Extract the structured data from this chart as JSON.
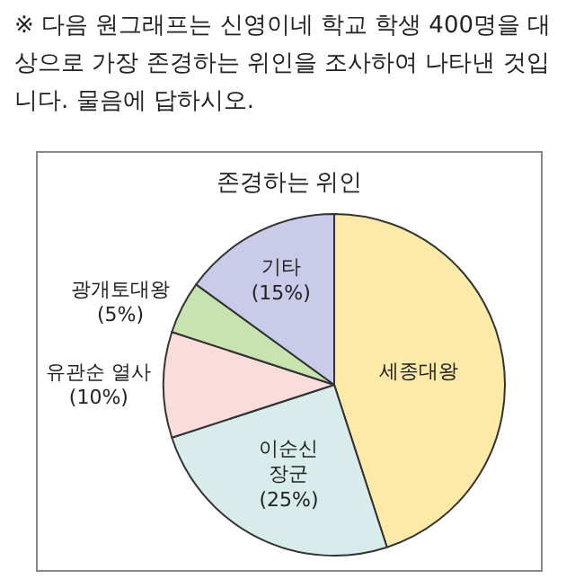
{
  "chart_data": {
    "type": "pie",
    "title": "존경하는 위인",
    "annotations": [
      "※ 다음 원그래프는 신영이네 학교 학생 400명을 대상으로 가장 존경하는 위인을 조사하여 나타낸 것입니다. 물음에 답하시오."
    ],
    "categories": [
      "세종대왕",
      "이순신\n장군",
      "유관순 열사",
      "광개토대왕",
      "기타"
    ],
    "values": [
      45,
      25,
      10,
      5,
      15
    ],
    "value_labels": [
      null,
      "(25%)",
      "(10%)",
      "(5%)",
      "(15%)"
    ],
    "colors": [
      "#fde9a8",
      "#d8ecec",
      "#fadcdc",
      "#c6e3b0",
      "#c9cbe8"
    ],
    "legend": false
  }
}
